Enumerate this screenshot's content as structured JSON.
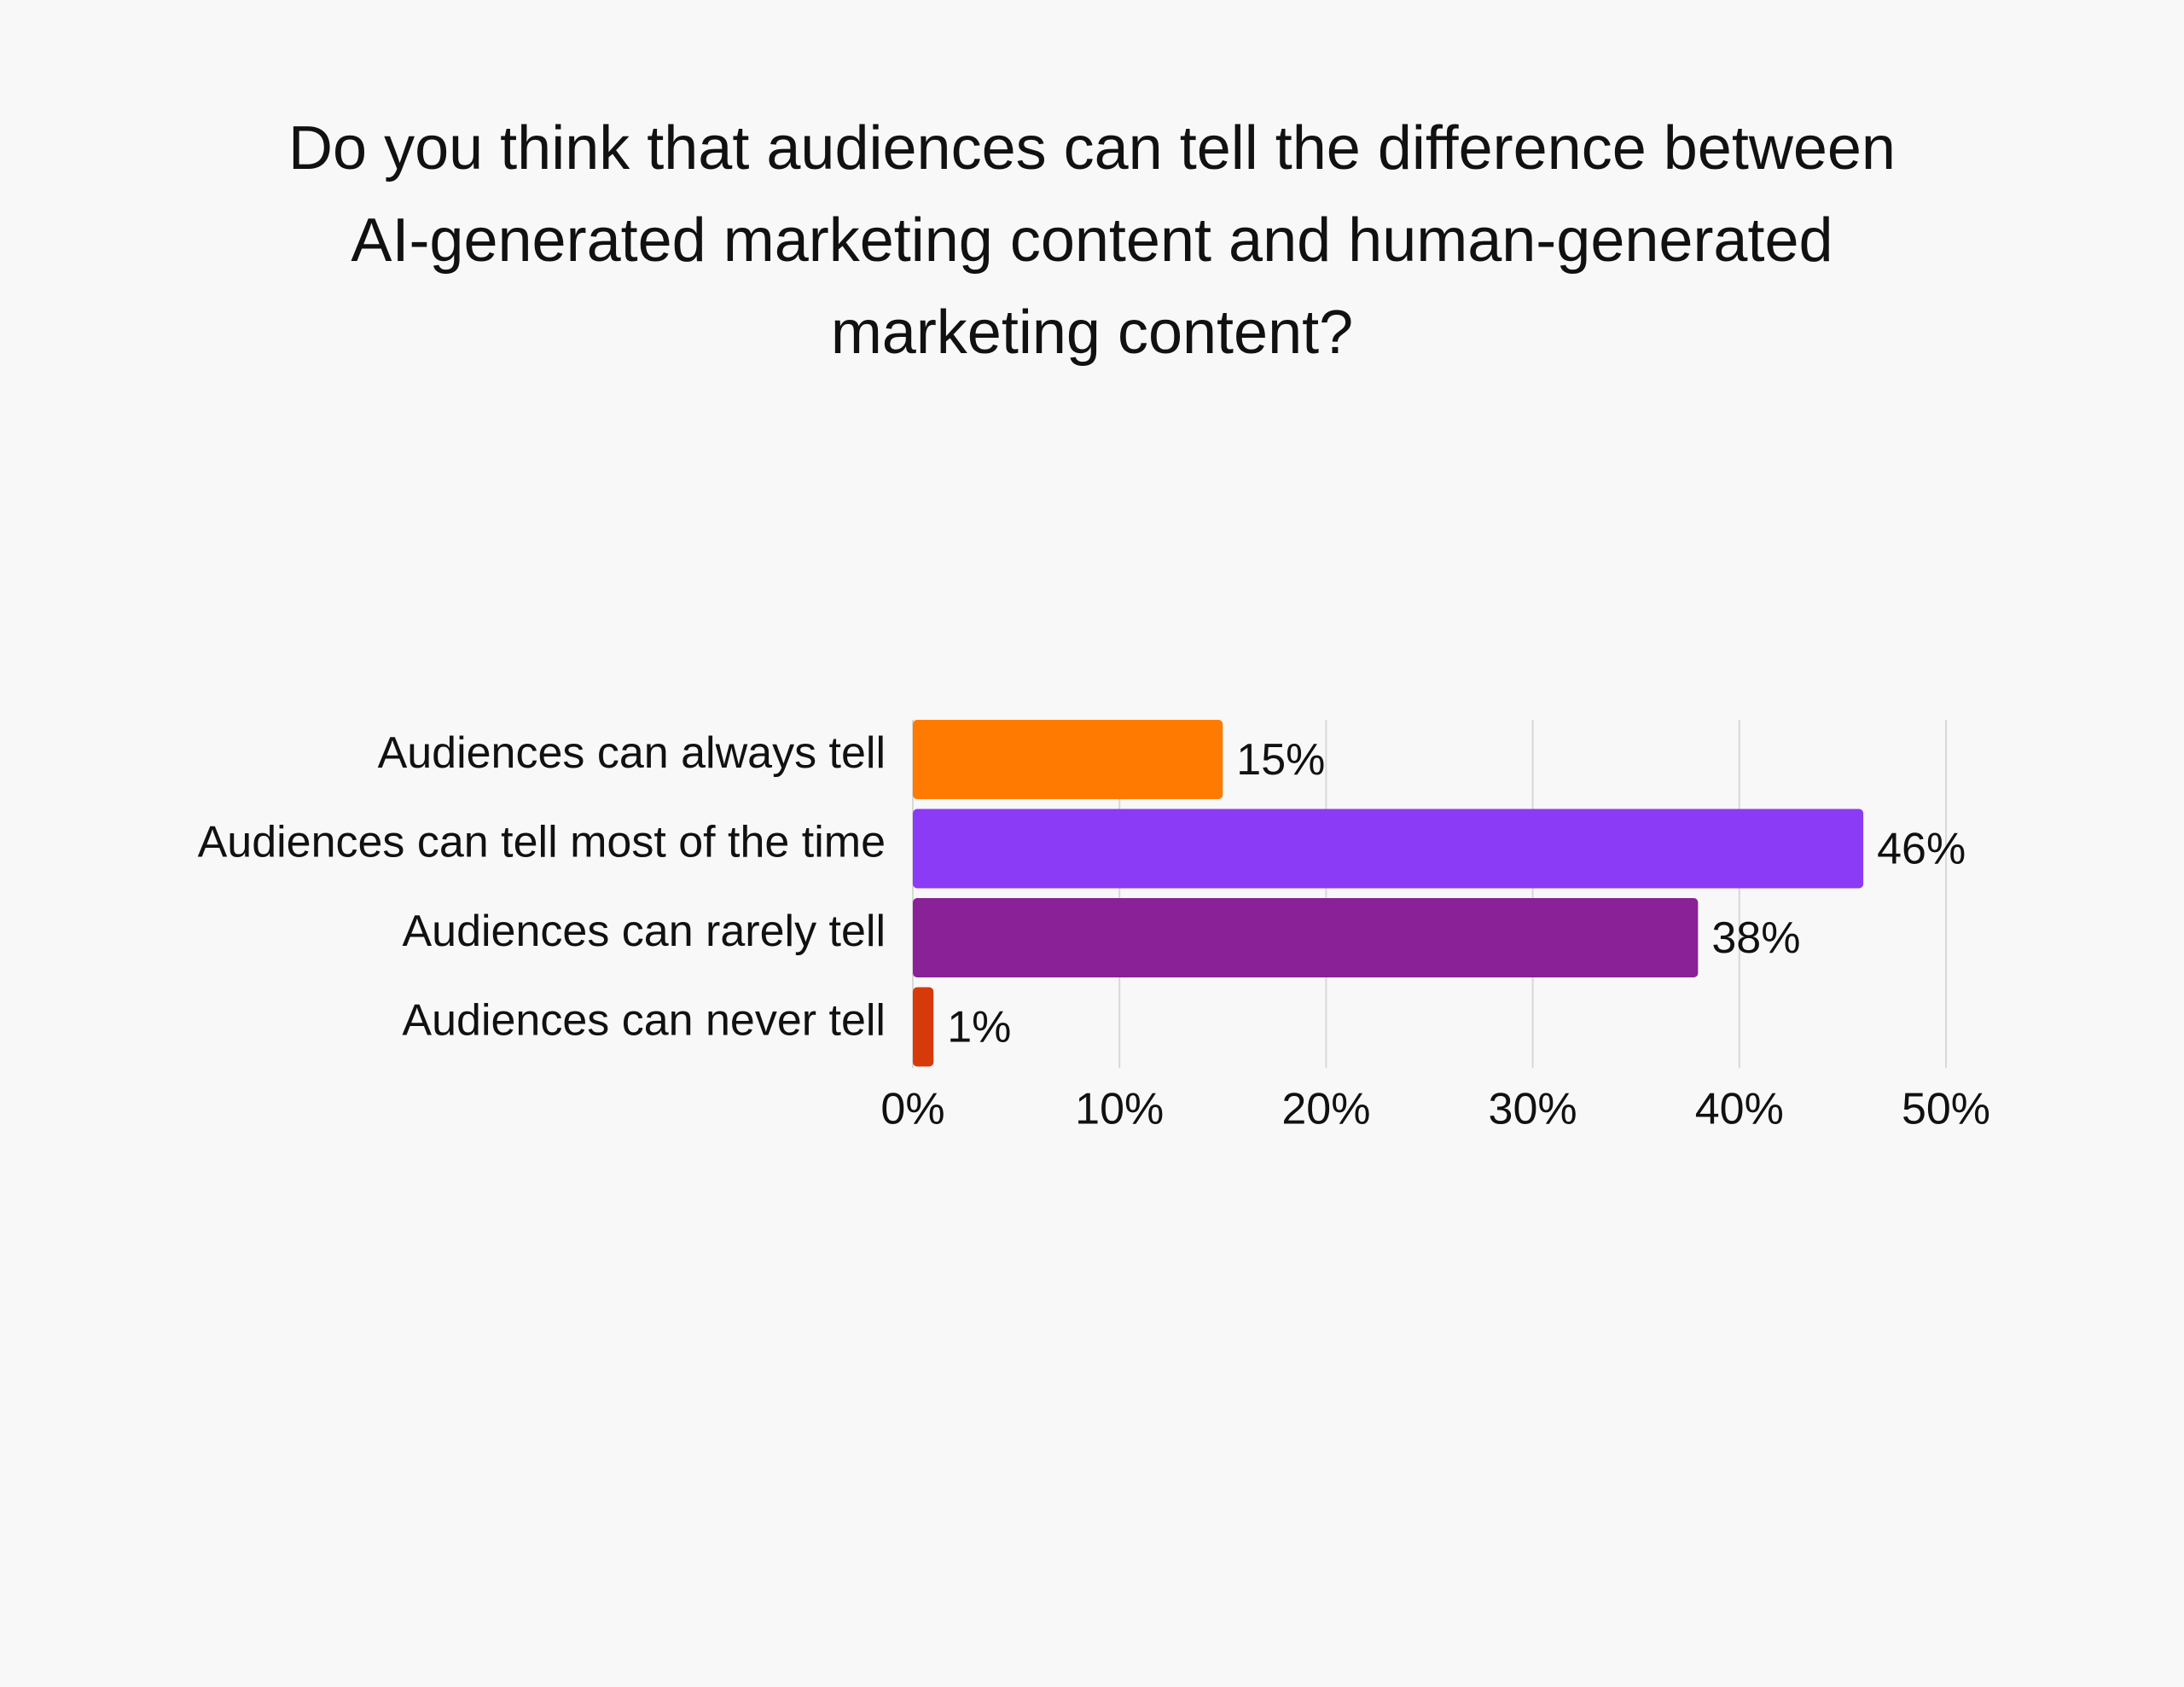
{
  "chart_data": {
    "type": "bar",
    "orientation": "horizontal",
    "title": "Do you think that audiences can tell the difference between AI-generated marketing content and human-generated marketing content?",
    "categories": [
      "Audiences can always tell",
      "Audiences can tell most of the time",
      "Audiences can rarely tell",
      "Audiences can never tell"
    ],
    "values": [
      15,
      46,
      38,
      1
    ],
    "value_labels": [
      "15%",
      "46%",
      "38%",
      "1%"
    ],
    "colors": [
      "#ff7a00",
      "#8b3af5",
      "#8a2196",
      "#d63a0a"
    ],
    "xlim": [
      0,
      50
    ],
    "xticks": [
      {
        "value": 0,
        "label": "0%"
      },
      {
        "value": 10,
        "label": "10%"
      },
      {
        "value": 20,
        "label": "20%"
      },
      {
        "value": 30,
        "label": "30%"
      },
      {
        "value": 40,
        "label": "40%"
      },
      {
        "value": 50,
        "label": "50%"
      }
    ],
    "grid": true
  }
}
